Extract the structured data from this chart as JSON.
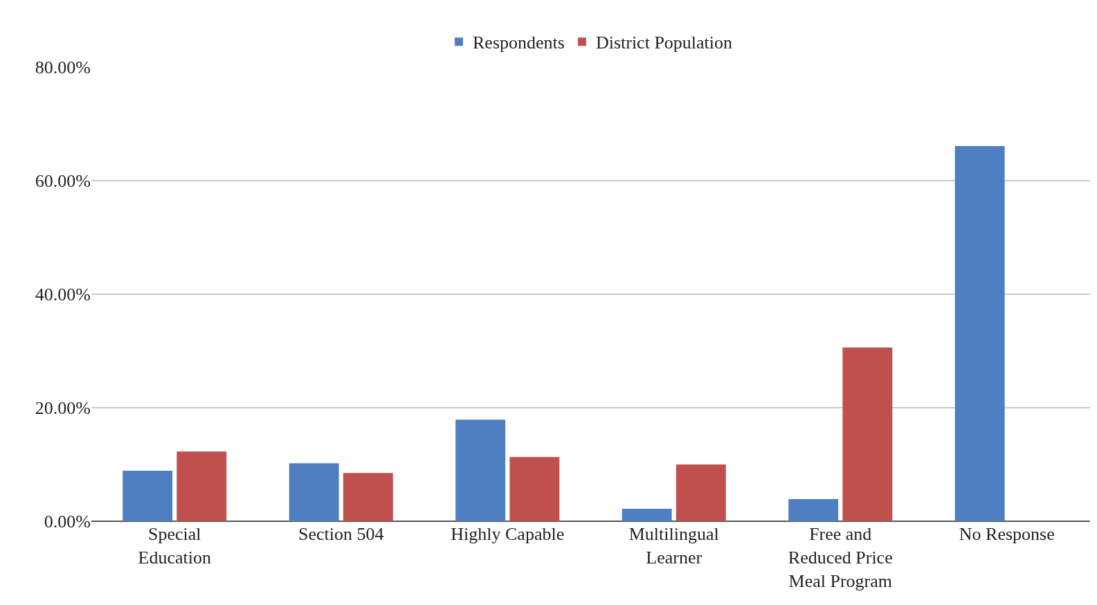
{
  "chart_data": {
    "type": "bar",
    "categories": [
      "Special Education",
      "Section 504",
      "Highly Capable",
      "Multilingual Learner",
      "Free and Reduced Price Meal Program",
      "No Response"
    ],
    "series": [
      {
        "name": "Respondents",
        "color": "#4e7fc1",
        "values": [
          8.9,
          10.2,
          17.9,
          2.2,
          3.9,
          66.1
        ]
      },
      {
        "name": "District Population",
        "color": "#c0504d",
        "values": [
          12.3,
          8.5,
          11.3,
          10.0,
          30.6,
          null
        ]
      }
    ],
    "ylim": [
      0,
      80
    ],
    "yticks": [
      {
        "value": 0,
        "label": "0.00%"
      },
      {
        "value": 20,
        "label": "20.00%"
      },
      {
        "value": 40,
        "label": "40.00%"
      },
      {
        "value": 60,
        "label": "60.00%"
      },
      {
        "value": 80,
        "label": "80.00%"
      }
    ],
    "grid": "y",
    "legend": "top"
  }
}
